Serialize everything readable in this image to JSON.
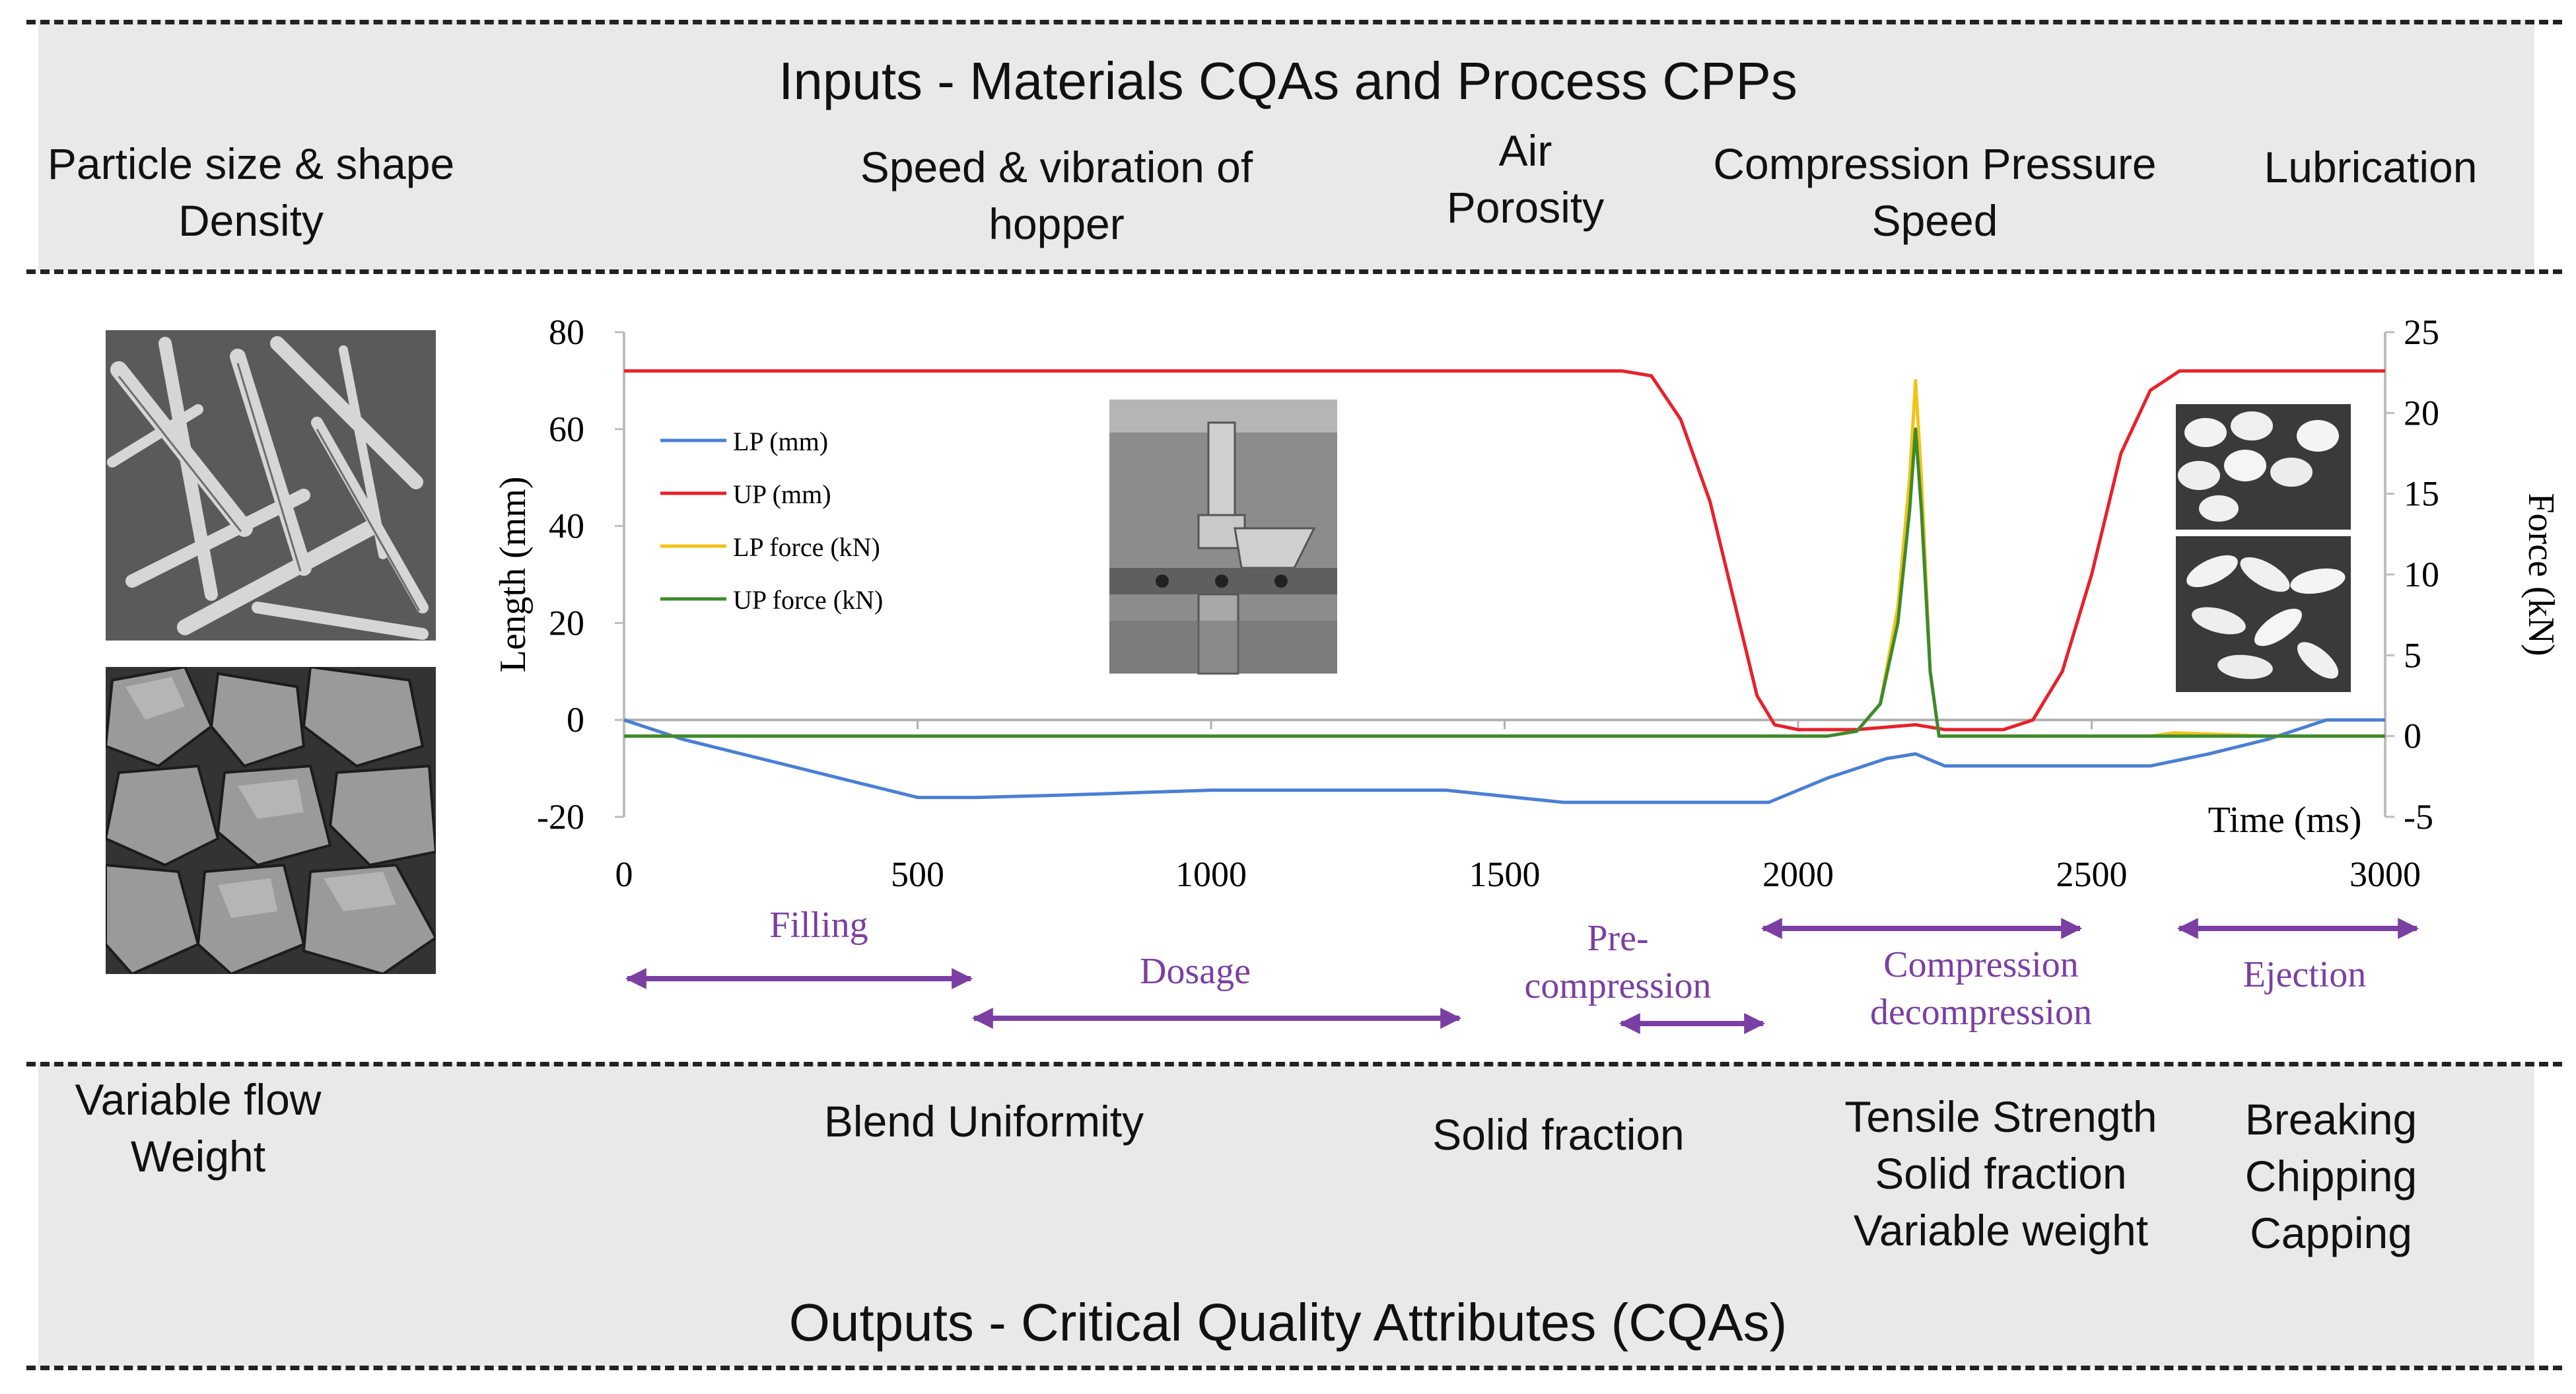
{
  "inputs": {
    "title": "Inputs - Materials CQAs and Process CPPs",
    "items": [
      "Particle size & shape\nDensity",
      "Speed & vibration of\nhopper",
      "Air\nPorosity",
      "Compression Pressure\nSpeed",
      "Lubrication"
    ]
  },
  "outputs": {
    "title": "Outputs - Critical Quality Attributes (CQAs)",
    "items": [
      "Variable flow\nWeight",
      "Blend Uniformity",
      "Solid fraction",
      "Tensile Strength\nSolid fraction\nVariable weight",
      "Breaking\nChipping\nCapping"
    ]
  },
  "phases": [
    {
      "label": "Filling"
    },
    {
      "label": "Dosage"
    },
    {
      "label": "Pre-\ncompression"
    },
    {
      "label": "Compression\ndecompression"
    },
    {
      "label": "Ejection"
    }
  ],
  "colors": {
    "phase": "#7b3fa3",
    "lp": "#4a7fd4",
    "up": "#e8212a",
    "lp_force": "#f2c316",
    "up_force": "#3c8a2e"
  },
  "chart_data": {
    "type": "line",
    "xlabel": "Time (ms)",
    "ylabel": "Length (mm)",
    "y2label": "Force (kN)",
    "xlim": [
      0,
      3000
    ],
    "ylim": [
      -20,
      80
    ],
    "y2lim": [
      -5,
      25
    ],
    "x_ticks": [
      0,
      500,
      1000,
      1500,
      2000,
      2500,
      3000
    ],
    "y_ticks": [
      80,
      60,
      40,
      20,
      0,
      -20
    ],
    "y2_ticks": [
      25,
      20,
      15,
      10,
      5,
      0,
      -5
    ],
    "series": [
      {
        "name": "LP (mm)",
        "axis": "left",
        "x": [
          0,
          100,
          300,
          500,
          600,
          750,
          1000,
          1200,
          1400,
          1600,
          1800,
          1950,
          2050,
          2150,
          2200,
          2250,
          2350,
          2500,
          2600,
          2700,
          2800,
          2900,
          3000
        ],
        "y": [
          0,
          -4,
          -10,
          -16,
          -16,
          -15.5,
          -14.5,
          -14.5,
          -14.5,
          -17,
          -17,
          -17,
          -12,
          -8,
          -7,
          -9.5,
          -9.5,
          -9.5,
          -9.5,
          -7,
          -4,
          0,
          0
        ]
      },
      {
        "name": "UP (mm)",
        "axis": "left",
        "x": [
          0,
          1700,
          1750,
          1800,
          1850,
          1900,
          1930,
          1960,
          2000,
          2100,
          2200,
          2250,
          2350,
          2400,
          2450,
          2500,
          2550,
          2600,
          2650,
          3000
        ],
        "y": [
          72,
          72,
          71,
          62,
          45,
          20,
          5,
          -1,
          -2,
          -2,
          -1,
          -2,
          -2,
          0,
          10,
          30,
          55,
          68,
          72,
          72
        ]
      },
      {
        "name": "LP force (kN)",
        "axis": "right",
        "x": [
          0,
          2050,
          2100,
          2140,
          2170,
          2190,
          2200,
          2210,
          2225,
          2240,
          2600,
          2640,
          2800,
          3000
        ],
        "y": [
          0,
          0,
          0.3,
          2,
          8,
          16,
          22,
          16,
          4,
          0,
          0,
          0.2,
          0,
          0
        ]
      },
      {
        "name": "UP force (kN)",
        "axis": "right",
        "x": [
          0,
          2050,
          2100,
          2140,
          2170,
          2190,
          2200,
          2210,
          2225,
          2240,
          3000
        ],
        "y": [
          0,
          0,
          0.3,
          2,
          7,
          14,
          19,
          14,
          4,
          0,
          0
        ]
      }
    ]
  }
}
